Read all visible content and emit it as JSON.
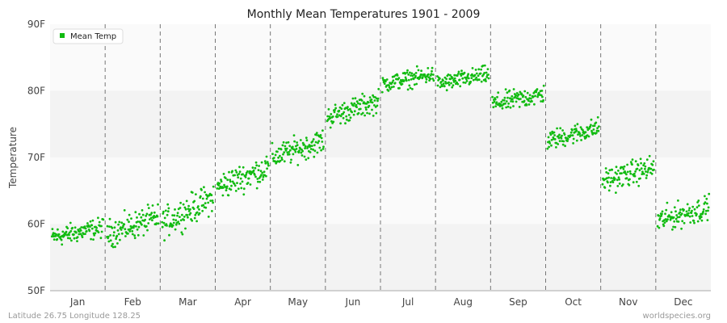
{
  "chart_data": {
    "type": "scatter",
    "title": "Monthly Mean Temperatures 1901 - 2009",
    "xlabel": "",
    "ylabel": "Temperature",
    "categories": [
      "Jan",
      "Feb",
      "Mar",
      "Apr",
      "May",
      "Jun",
      "Jul",
      "Aug",
      "Sep",
      "Oct",
      "Nov",
      "Dec"
    ],
    "yticks": [
      "50F",
      "60F",
      "70F",
      "80F",
      "90F"
    ],
    "ylim": [
      50,
      90
    ],
    "grid": "horizontal bands, dashed vertical month separators",
    "legend": {
      "position": "top-left",
      "entries": [
        "Mean Temp"
      ]
    },
    "series": [
      {
        "name": "Mean Temp",
        "color": "#11bb11",
        "years": [
          1901,
          2009
        ],
        "monthly_ranges": [
          {
            "month": "Jan",
            "start": 58.0,
            "end": 59.5,
            "min": 52.5,
            "max": 62.0
          },
          {
            "month": "Feb",
            "start": 58.5,
            "end": 61.0,
            "min": 52.5,
            "max": 64.0
          },
          {
            "month": "Mar",
            "start": 60.0,
            "end": 64.0,
            "min": 57.5,
            "max": 66.0
          },
          {
            "month": "Apr",
            "start": 65.5,
            "end": 68.5,
            "min": 63.0,
            "max": 71.0
          },
          {
            "month": "May",
            "start": 70.0,
            "end": 72.5,
            "min": 67.0,
            "max": 75.0
          },
          {
            "month": "Jun",
            "start": 76.0,
            "end": 78.5,
            "min": 72.5,
            "max": 80.5
          },
          {
            "month": "Jul",
            "start": 81.0,
            "end": 82.5,
            "min": 78.5,
            "max": 84.5
          },
          {
            "month": "Aug",
            "start": 81.0,
            "end": 82.5,
            "min": 78.5,
            "max": 84.5
          },
          {
            "month": "Sep",
            "start": 78.0,
            "end": 79.5,
            "min": 75.5,
            "max": 82.0
          },
          {
            "month": "Oct",
            "start": 72.5,
            "end": 74.5,
            "min": 70.5,
            "max": 77.5
          },
          {
            "month": "Nov",
            "start": 66.5,
            "end": 68.5,
            "min": 63.5,
            "max": 72.0
          },
          {
            "month": "Dec",
            "start": 60.5,
            "end": 62.5,
            "min": 57.0,
            "max": 65.5
          }
        ]
      }
    ]
  },
  "footer": {
    "location": "Latitude 26.75 Longitude 128.25",
    "source": "worldspecies.org"
  }
}
